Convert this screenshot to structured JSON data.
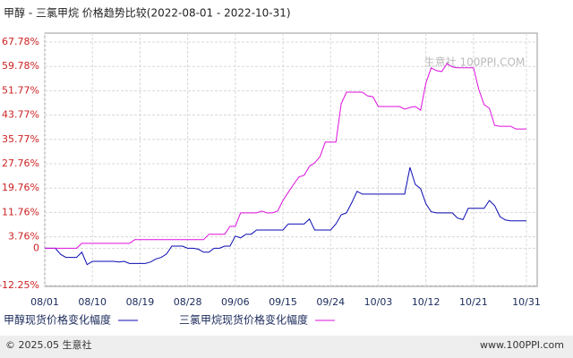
{
  "chart_data": {
    "type": "line",
    "title": "甲醇 - 三氯甲烷 价格趋势比较(2022-08-01 - 2022-10-31)",
    "watermark": "生意社 100PPI.COM",
    "footer_left": "© 2025.05 生意社",
    "footer_right": "www.100PPI.com",
    "categories": [
      "08/01",
      null,
      null,
      null,
      null,
      null,
      null,
      null,
      null,
      "08/10",
      null,
      null,
      null,
      null,
      null,
      null,
      null,
      null,
      "08/19",
      null,
      null,
      null,
      null,
      null,
      null,
      null,
      null,
      "08/28",
      null,
      null,
      null,
      null,
      null,
      null,
      null,
      null,
      "09/06",
      null,
      null,
      null,
      null,
      null,
      null,
      null,
      null,
      "09/15",
      null,
      null,
      null,
      null,
      null,
      null,
      null,
      null,
      "09/24",
      null,
      null,
      null,
      null,
      null,
      null,
      null,
      null,
      "10/03",
      null,
      null,
      null,
      null,
      null,
      null,
      null,
      null,
      "10/12",
      null,
      null,
      null,
      null,
      null,
      null,
      null,
      null,
      "10/21",
      null,
      null,
      null,
      null,
      null,
      null,
      null,
      null,
      null,
      "10/31"
    ],
    "series": [
      {
        "name": "甲醇现货价格变化幅度",
        "color": "#0a0ab4",
        "values": [
          0,
          0,
          0,
          -2,
          -3,
          -3,
          -3,
          -1.3,
          -5.4,
          -4.3,
          -4.3,
          -4.3,
          -4.3,
          -4.3,
          -4.5,
          -4.3,
          -5,
          -5,
          -5,
          -5,
          -4.5,
          -3.5,
          -3,
          -1.9,
          0.7,
          0.7,
          0.7,
          0,
          0,
          -0.3,
          -1.3,
          -1.3,
          0,
          0,
          0.7,
          0.7,
          4,
          3.4,
          4.6,
          4.6,
          6,
          6,
          6,
          6,
          6,
          6,
          8,
          8,
          8,
          8,
          9.6,
          6,
          6,
          6,
          6,
          8,
          11,
          11.6,
          15,
          18.7,
          17.8,
          17.8,
          17.8,
          17.8,
          17.8,
          17.8,
          17.8,
          17.8,
          17.8,
          26.6,
          21,
          19.6,
          14.6,
          12,
          11.6,
          11.6,
          11.6,
          11.6,
          9.9,
          9.4,
          13.1,
          13.1,
          13.1,
          13.1,
          15.7,
          14,
          10.4,
          9.3,
          9,
          9,
          9,
          9
        ]
      },
      {
        "name": "三氯甲烷现货价格变化幅度",
        "color": "#dd10dd",
        "values": [
          0,
          0,
          0,
          0,
          0,
          0,
          0,
          1.6,
          1.6,
          1.6,
          1.6,
          1.6,
          1.6,
          1.6,
          1.6,
          1.6,
          1.6,
          2.8,
          2.8,
          2.8,
          2.8,
          2.8,
          2.8,
          2.8,
          2.8,
          2.8,
          2.8,
          2.8,
          2.8,
          2.8,
          2.8,
          4.6,
          4.6,
          4.6,
          4.6,
          7.2,
          7.2,
          11.6,
          11.6,
          11.6,
          11.6,
          12.2,
          11.6,
          11.6,
          12.2,
          15.7,
          18.4,
          21,
          23.4,
          24,
          26.9,
          28.1,
          30.1,
          34.9,
          34.9,
          34.9,
          47.5,
          51.3,
          51.3,
          51.3,
          51.3,
          50.1,
          49.8,
          46.6,
          46.6,
          46.6,
          46.6,
          46.6,
          45.7,
          46.3,
          46.6,
          45.4,
          54.3,
          59.3,
          58.4,
          58.1,
          60.7,
          59.6,
          59.3,
          59.3,
          59.3,
          59.3,
          52.2,
          47.2,
          46,
          40.4,
          40.1,
          40.1,
          40.1,
          39.2,
          39.2,
          39.2
        ]
      }
    ],
    "ylim": [
      -12.25,
      67.78
    ],
    "yticks": [
      {
        "value": -12.25,
        "label": "-12.25%"
      },
      0,
      {
        "value": 3.76,
        "label": "3.76%"
      },
      {
        "value": 11.76,
        "label": "11.76%"
      },
      {
        "value": 19.76,
        "label": "19.76%"
      },
      {
        "value": 27.76,
        "label": "27.76%"
      },
      {
        "value": 35.77,
        "label": "35.77%"
      },
      {
        "value": 43.77,
        "label": "43.77%"
      },
      {
        "value": 51.77,
        "label": "51.77%"
      },
      {
        "value": 59.78,
        "label": "59.78%"
      },
      {
        "value": 67.78,
        "label": "67.78%"
      }
    ],
    "grid": true
  }
}
